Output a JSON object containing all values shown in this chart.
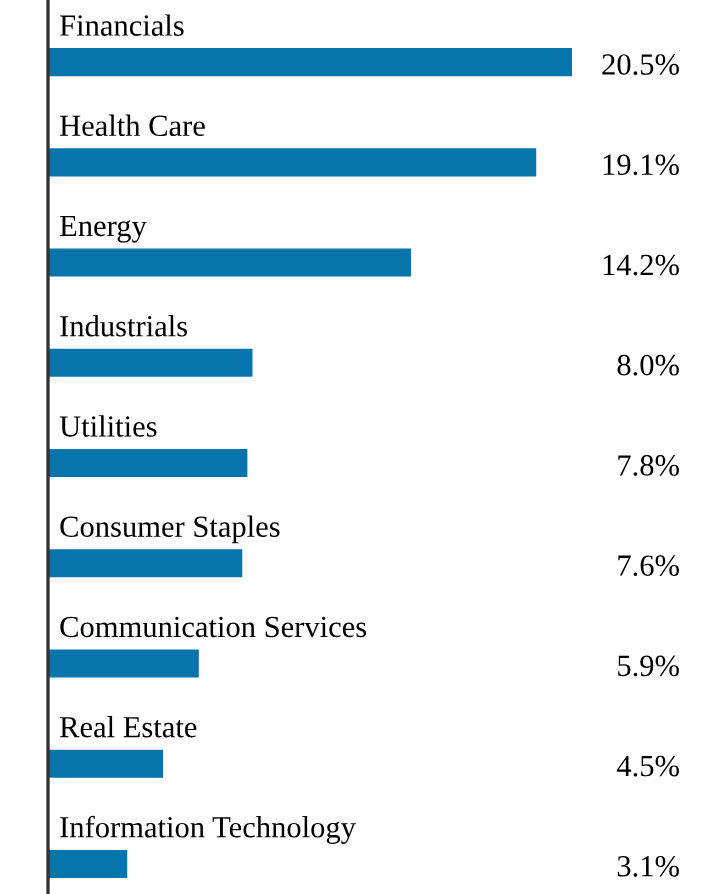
{
  "chart_data": {
    "type": "bar",
    "orientation": "horizontal",
    "categories": [
      "Financials",
      "Health Care",
      "Energy",
      "Industrials",
      "Utilities",
      "Consumer Staples",
      "Communication Services",
      "Real Estate",
      "Information Technology"
    ],
    "values": [
      20.5,
      19.1,
      14.2,
      8.0,
      7.8,
      7.6,
      5.9,
      4.5,
      3.1
    ],
    "value_labels": [
      "20.5%",
      "19.1%",
      "14.2%",
      "8.0%",
      "7.8%",
      "7.6%",
      "5.9%",
      "4.5%",
      "3.1%"
    ],
    "color": "#0874ac",
    "tick_labels": false
  }
}
